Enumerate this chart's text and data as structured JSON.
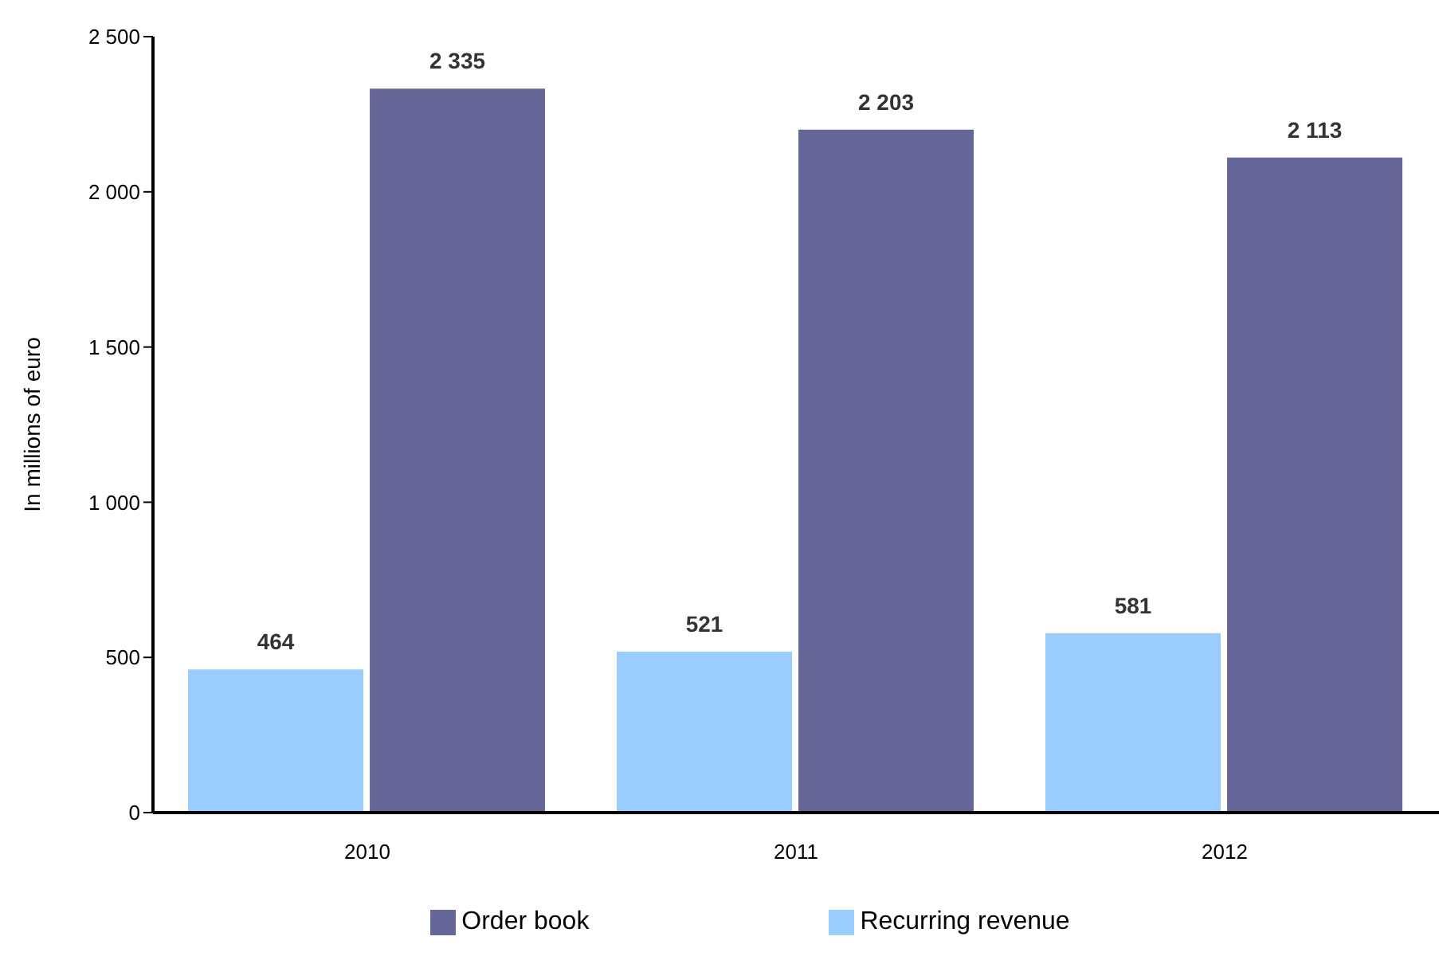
{
  "chart_data": {
    "type": "bar",
    "ylabel": "In millions of euro",
    "categories": [
      "2010",
      "2011",
      "2012"
    ],
    "series": [
      {
        "name": "Recurring revenue",
        "color": "#99ccff",
        "values": [
          464,
          521,
          581
        ],
        "value_labels": [
          "464",
          "521",
          "581"
        ]
      },
      {
        "name": "Order book",
        "color": "#666699",
        "values": [
          2335,
          2203,
          2113
        ],
        "value_labels": [
          "2 335",
          "2 203",
          "2 113"
        ]
      }
    ],
    "ylim": [
      0,
      2500
    ],
    "yticks": [
      0,
      500,
      {
        "value": 1000,
        "label": "1 000"
      },
      {
        "value": 1500,
        "label": "1 500"
      },
      {
        "value": 2000,
        "label": "2 000"
      },
      {
        "value": 2500,
        "label": "2 500"
      }
    ],
    "grid": false,
    "legend": "bottom"
  }
}
